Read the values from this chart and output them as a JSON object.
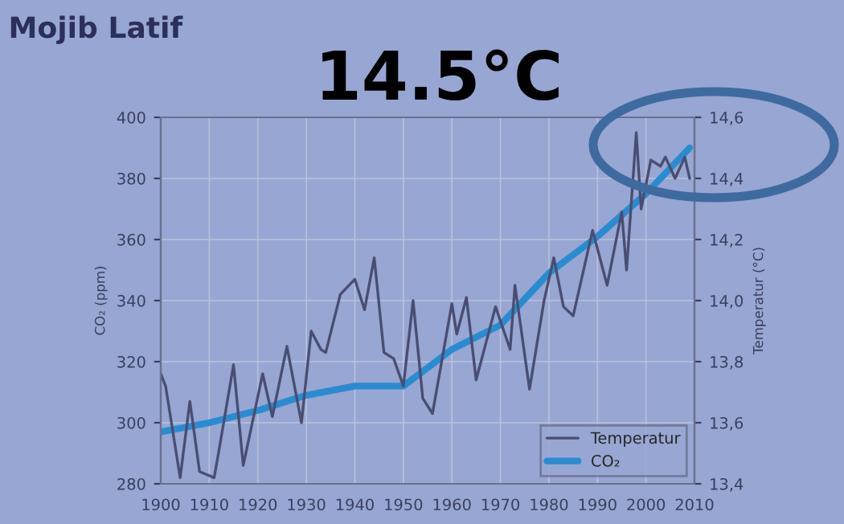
{
  "chart_data": {
    "type": "line",
    "title": "Mojib Latif",
    "annotations": [
      "14.5°C"
    ],
    "ylabel": "CO₂ (ppm)",
    "y2label": "Temperatur (°C)",
    "xlim": [
      1900,
      2010
    ],
    "xticks": [
      1900,
      1910,
      1920,
      1930,
      1940,
      1950,
      1960,
      1970,
      1980,
      1990,
      2000,
      2010
    ],
    "ylim": [
      280,
      400
    ],
    "yticks": [
      280,
      300,
      320,
      340,
      360,
      380,
      400
    ],
    "y2lim": [
      13.4,
      14.6
    ],
    "y2ticks": [
      {
        "value": 13.4,
        "label": "13,4"
      },
      {
        "value": 13.6,
        "label": "13,6"
      },
      {
        "value": 13.8,
        "label": "13,8"
      },
      {
        "value": 14.0,
        "label": "14,0"
      },
      {
        "value": 14.2,
        "label": "14,2"
      },
      {
        "value": 14.4,
        "label": "14,4"
      },
      {
        "value": 14.6,
        "label": "14,6"
      }
    ],
    "grid": true,
    "legend": "bottom right",
    "series": [
      {
        "name": "Temperatur",
        "color": "#4a4d72",
        "axis": "y2",
        "x": [
          1900,
          1901,
          1904,
          1906,
          1908,
          1911,
          1912,
          1915,
          1917,
          1921,
          1923,
          1926,
          1929,
          1931,
          1933,
          1934,
          1937,
          1940,
          1942,
          1944,
          1946,
          1948,
          1950,
          1952,
          1954,
          1956,
          1960,
          1961,
          1963,
          1965,
          1969,
          1972,
          1973,
          1976,
          1979,
          1981,
          1983,
          1985,
          1988,
          1989,
          1992,
          1995,
          1996,
          1998,
          1999,
          2001,
          2003,
          2004,
          2006,
          2008,
          2009
        ],
        "values": [
          13.76,
          13.72,
          13.42,
          13.67,
          13.44,
          13.42,
          13.51,
          13.79,
          13.46,
          13.76,
          13.62,
          13.85,
          13.6,
          13.9,
          13.84,
          13.83,
          14.02,
          14.07,
          13.97,
          14.14,
          13.83,
          13.81,
          13.72,
          14.0,
          13.68,
          13.63,
          13.99,
          13.89,
          14.01,
          13.74,
          13.98,
          13.84,
          14.05,
          13.71,
          14.0,
          14.14,
          13.98,
          13.95,
          14.16,
          14.23,
          14.05,
          14.29,
          14.1,
          14.55,
          14.3,
          14.46,
          14.44,
          14.47,
          14.4,
          14.47,
          14.4
        ]
      },
      {
        "name": "CO₂",
        "color": "#2a8cd0",
        "x": [
          1900,
          1910,
          1920,
          1930,
          1940,
          1950,
          1960,
          1970,
          1980,
          1990,
          2000,
          2009
        ],
        "values": [
          297,
          300,
          304,
          309,
          312,
          312,
          324,
          332,
          349,
          361,
          375,
          390
        ]
      }
    ]
  }
}
